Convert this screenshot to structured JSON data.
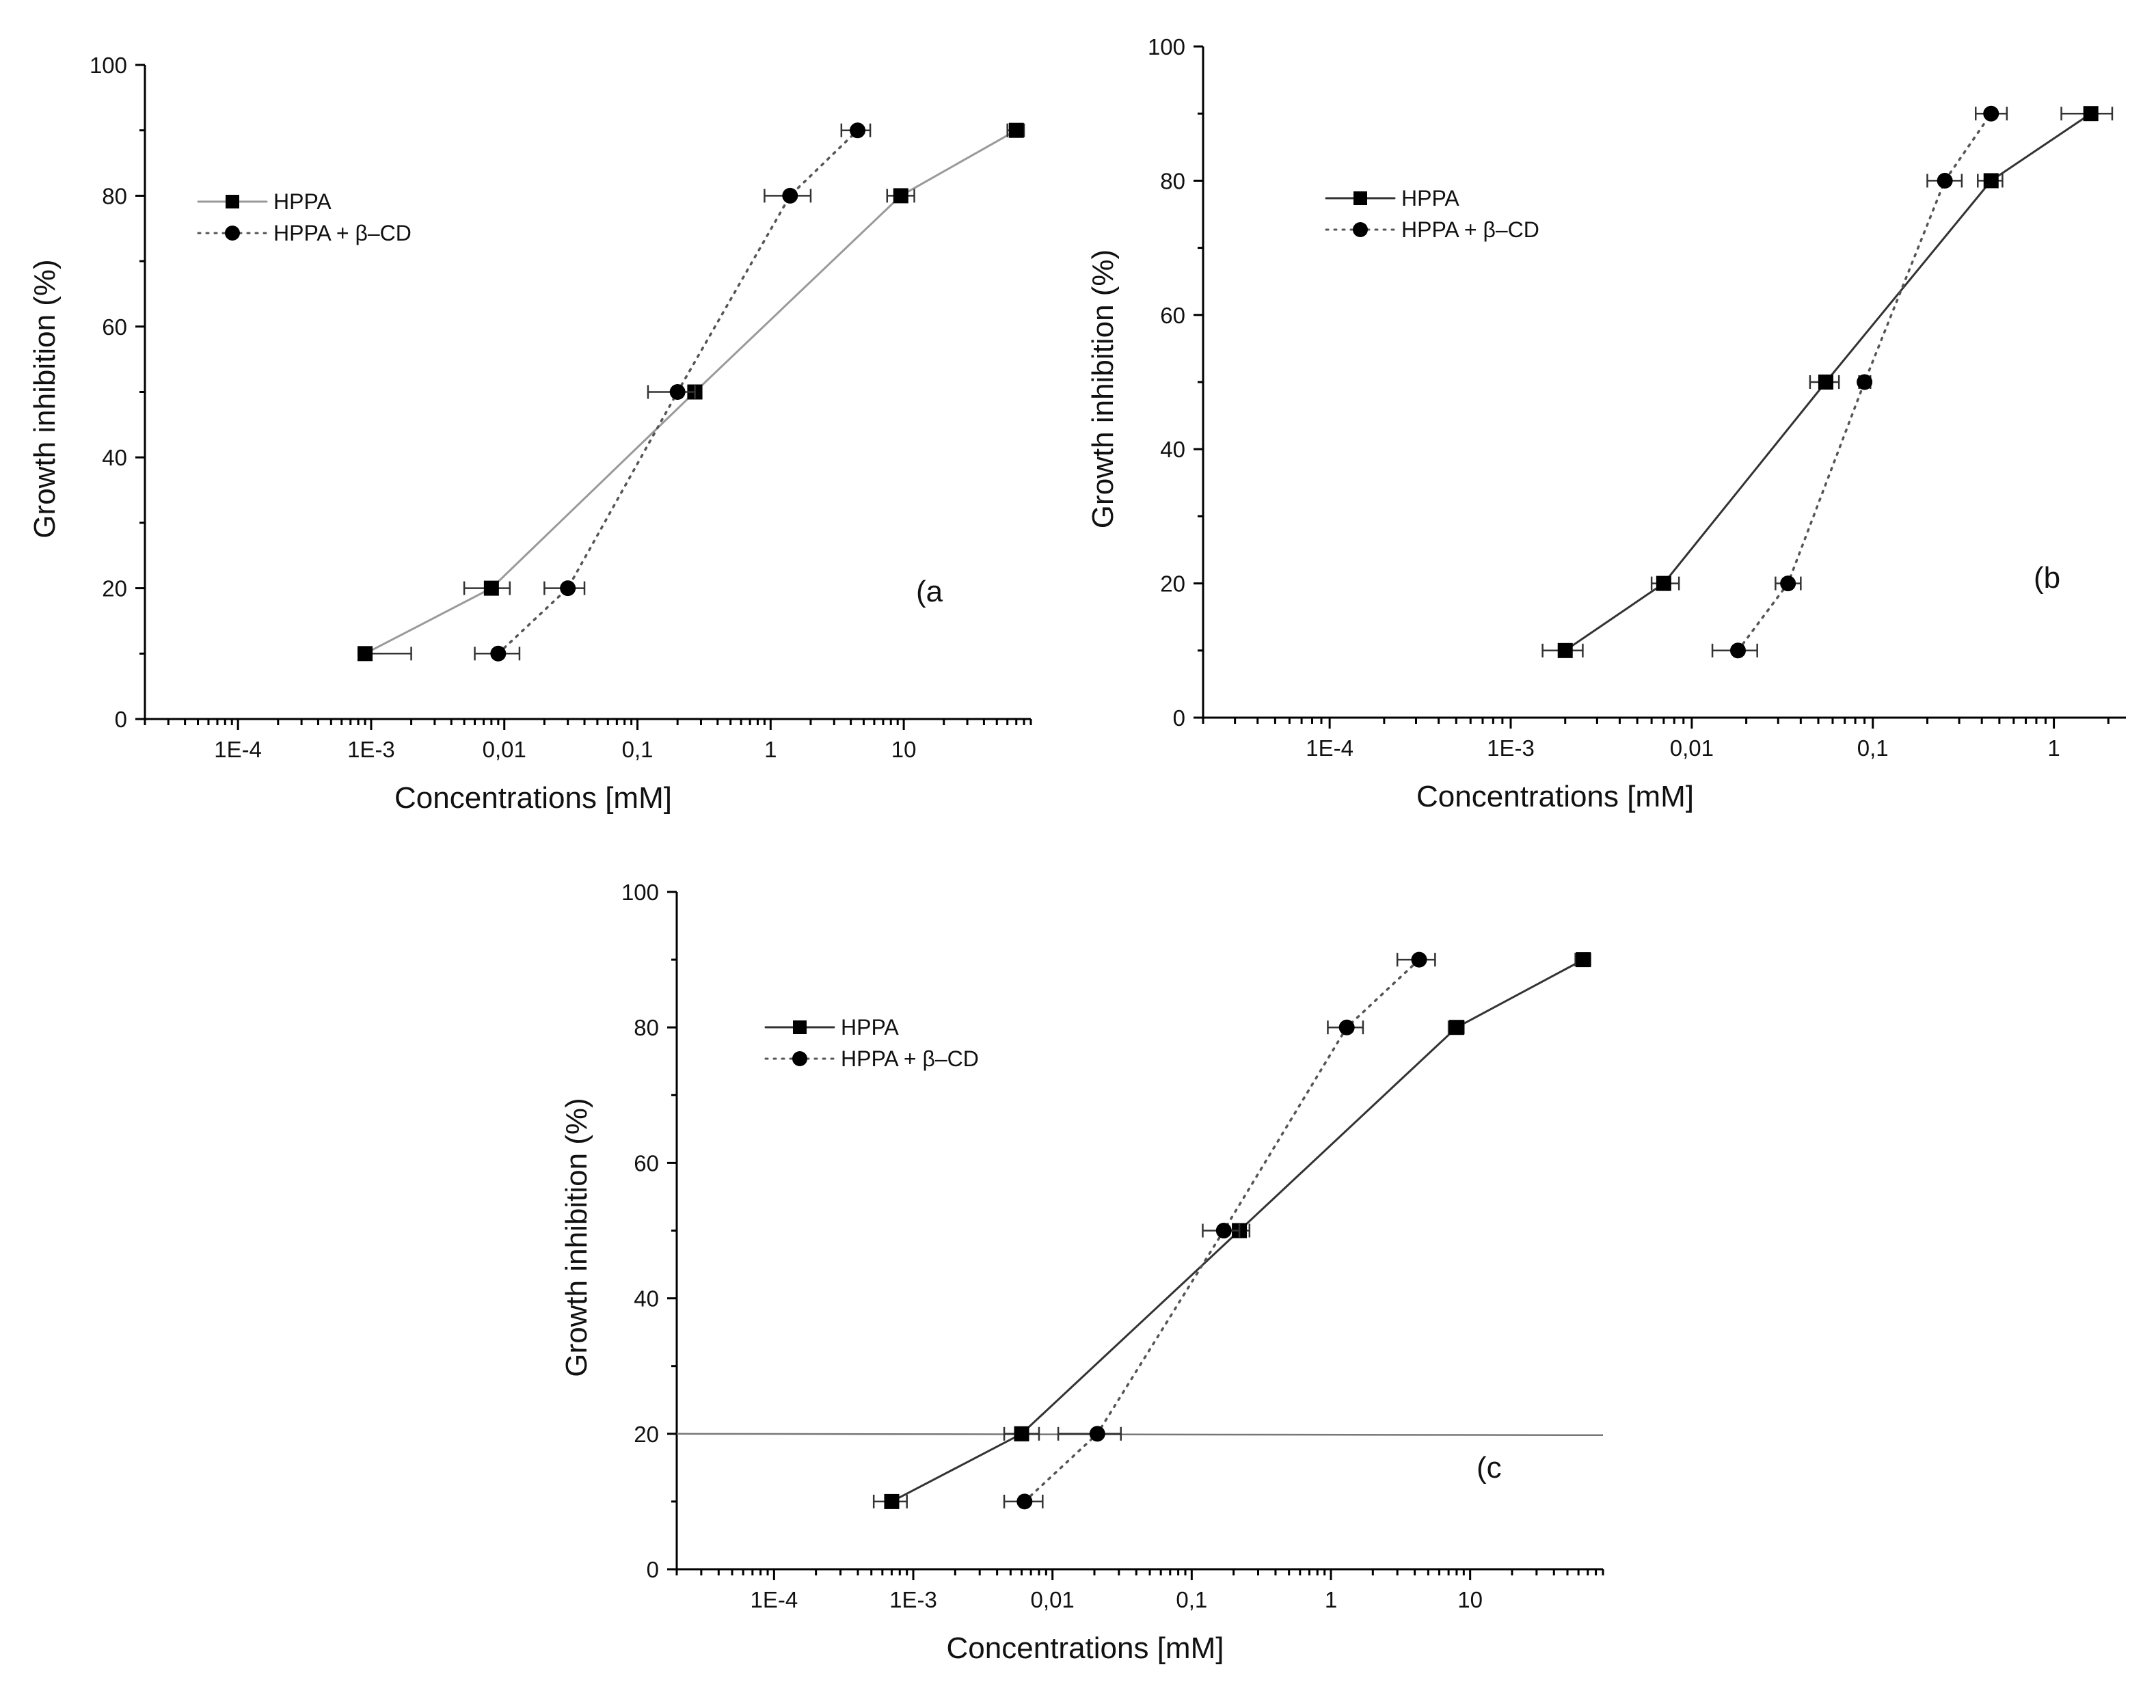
{
  "chart_data": [
    {
      "type": "line",
      "panel_label": "(a",
      "xlabel": "Concentrations [mM]",
      "ylabel": "Growth inhibition  (%)",
      "x_scale": "log",
      "xlim": [
        2e-05,
        90
      ],
      "ylim": [
        0,
        100
      ],
      "x_ticks": [
        {
          "value": 0.0001,
          "label": "1E-4"
        },
        {
          "value": 0.001,
          "label": "1E-3"
        },
        {
          "value": 0.01,
          "label": "0,01"
        },
        {
          "value": 0.1,
          "label": "0,1"
        },
        {
          "value": 1,
          "label": "1"
        },
        {
          "value": 10,
          "label": "10"
        }
      ],
      "y_ticks": [
        0,
        20,
        40,
        60,
        80,
        100
      ],
      "legend_position": "upper-left",
      "series": [
        {
          "name": "HPPA",
          "marker": "square",
          "line": "solid",
          "color": "#9a9a9a",
          "x": [
            0.0009,
            0.008,
            0.27,
            9.5,
            70
          ],
          "y": [
            10,
            20,
            50,
            80,
            90
          ],
          "xerr_low": [
            0.0009,
            0.005,
            0.24,
            7.5,
            60
          ],
          "xerr_high": [
            0.002,
            0.011,
            0.3,
            12,
            80
          ]
        },
        {
          "name": "HPPA + β–CD",
          "marker": "circle",
          "line": "dotted",
          "color": "#555555",
          "x": [
            0.009,
            0.03,
            0.2,
            1.4,
            4.5
          ],
          "y": [
            10,
            20,
            50,
            80,
            90
          ],
          "xerr_low": [
            0.006,
            0.02,
            0.12,
            0.9,
            3.4
          ],
          "xerr_high": [
            0.013,
            0.04,
            0.27,
            2.0,
            5.6
          ]
        }
      ]
    },
    {
      "type": "line",
      "panel_label": "(b",
      "xlabel": "Concentrations [mM]",
      "ylabel": "Growth inhibition  (%)",
      "x_scale": "log",
      "xlim": [
        2e-05,
        2.5
      ],
      "ylim": [
        0,
        100
      ],
      "x_ticks": [
        {
          "value": 0.0001,
          "label": "1E-4"
        },
        {
          "value": 0.001,
          "label": "1E-3"
        },
        {
          "value": 0.01,
          "label": "0,01"
        },
        {
          "value": 0.1,
          "label": "0,1"
        },
        {
          "value": 1,
          "label": "1"
        }
      ],
      "y_ticks": [
        0,
        20,
        40,
        60,
        80,
        100
      ],
      "legend_position": "upper-left",
      "series": [
        {
          "name": "HPPA",
          "marker": "square",
          "line": "solid",
          "color": "#333333",
          "x": [
            0.002,
            0.007,
            0.055,
            0.45,
            1.6
          ],
          "y": [
            10,
            20,
            50,
            80,
            90
          ],
          "xerr_low": [
            0.0015,
            0.006,
            0.045,
            0.38,
            1.1
          ],
          "xerr_high": [
            0.0025,
            0.0085,
            0.065,
            0.52,
            2.1
          ]
        },
        {
          "name": "HPPA + β–CD",
          "marker": "circle",
          "line": "dotted",
          "color": "#555555",
          "x": [
            0.018,
            0.034,
            0.09,
            0.25,
            0.45
          ],
          "y": [
            10,
            20,
            50,
            80,
            90
          ],
          "xerr_low": [
            0.013,
            0.029,
            0.084,
            0.2,
            0.37
          ],
          "xerr_high": [
            0.023,
            0.04,
            0.097,
            0.31,
            0.55
          ]
        }
      ]
    },
    {
      "type": "line",
      "panel_label": "(c",
      "xlabel": "Concentrations [mM]",
      "ylabel": "Growth inhibition  (%)",
      "x_scale": "log",
      "xlim": [
        2e-05,
        90
      ],
      "ylim": [
        0,
        100
      ],
      "x_ticks": [
        {
          "value": 0.0001,
          "label": "1E-4"
        },
        {
          "value": 0.001,
          "label": "1E-3"
        },
        {
          "value": 0.01,
          "label": "0,01"
        },
        {
          "value": 0.1,
          "label": "0,1"
        },
        {
          "value": 1,
          "label": "1"
        },
        {
          "value": 10,
          "label": "10"
        }
      ],
      "y_ticks": [
        0,
        20,
        40,
        60,
        80,
        100
      ],
      "reference_line_y": 20,
      "legend_position": "upper-left",
      "series": [
        {
          "name": "HPPA",
          "marker": "square",
          "line": "solid",
          "color": "#333333",
          "x": [
            0.0007,
            0.006,
            0.22,
            8,
            65
          ],
          "y": [
            10,
            20,
            50,
            80,
            90
          ],
          "xerr_low": [
            0.00052,
            0.0045,
            0.18,
            7,
            57
          ],
          "xerr_high": [
            0.0009,
            0.008,
            0.26,
            9,
            73
          ]
        },
        {
          "name": "HPPA + β–CD",
          "marker": "circle",
          "line": "dotted",
          "color": "#555555",
          "x": [
            0.0063,
            0.021,
            0.17,
            1.3,
            4.3
          ],
          "y": [
            10,
            20,
            50,
            80,
            90
          ],
          "xerr_low": [
            0.0045,
            0.011,
            0.12,
            0.95,
            3.0
          ],
          "xerr_high": [
            0.0085,
            0.031,
            0.22,
            1.7,
            5.6
          ]
        }
      ]
    }
  ]
}
